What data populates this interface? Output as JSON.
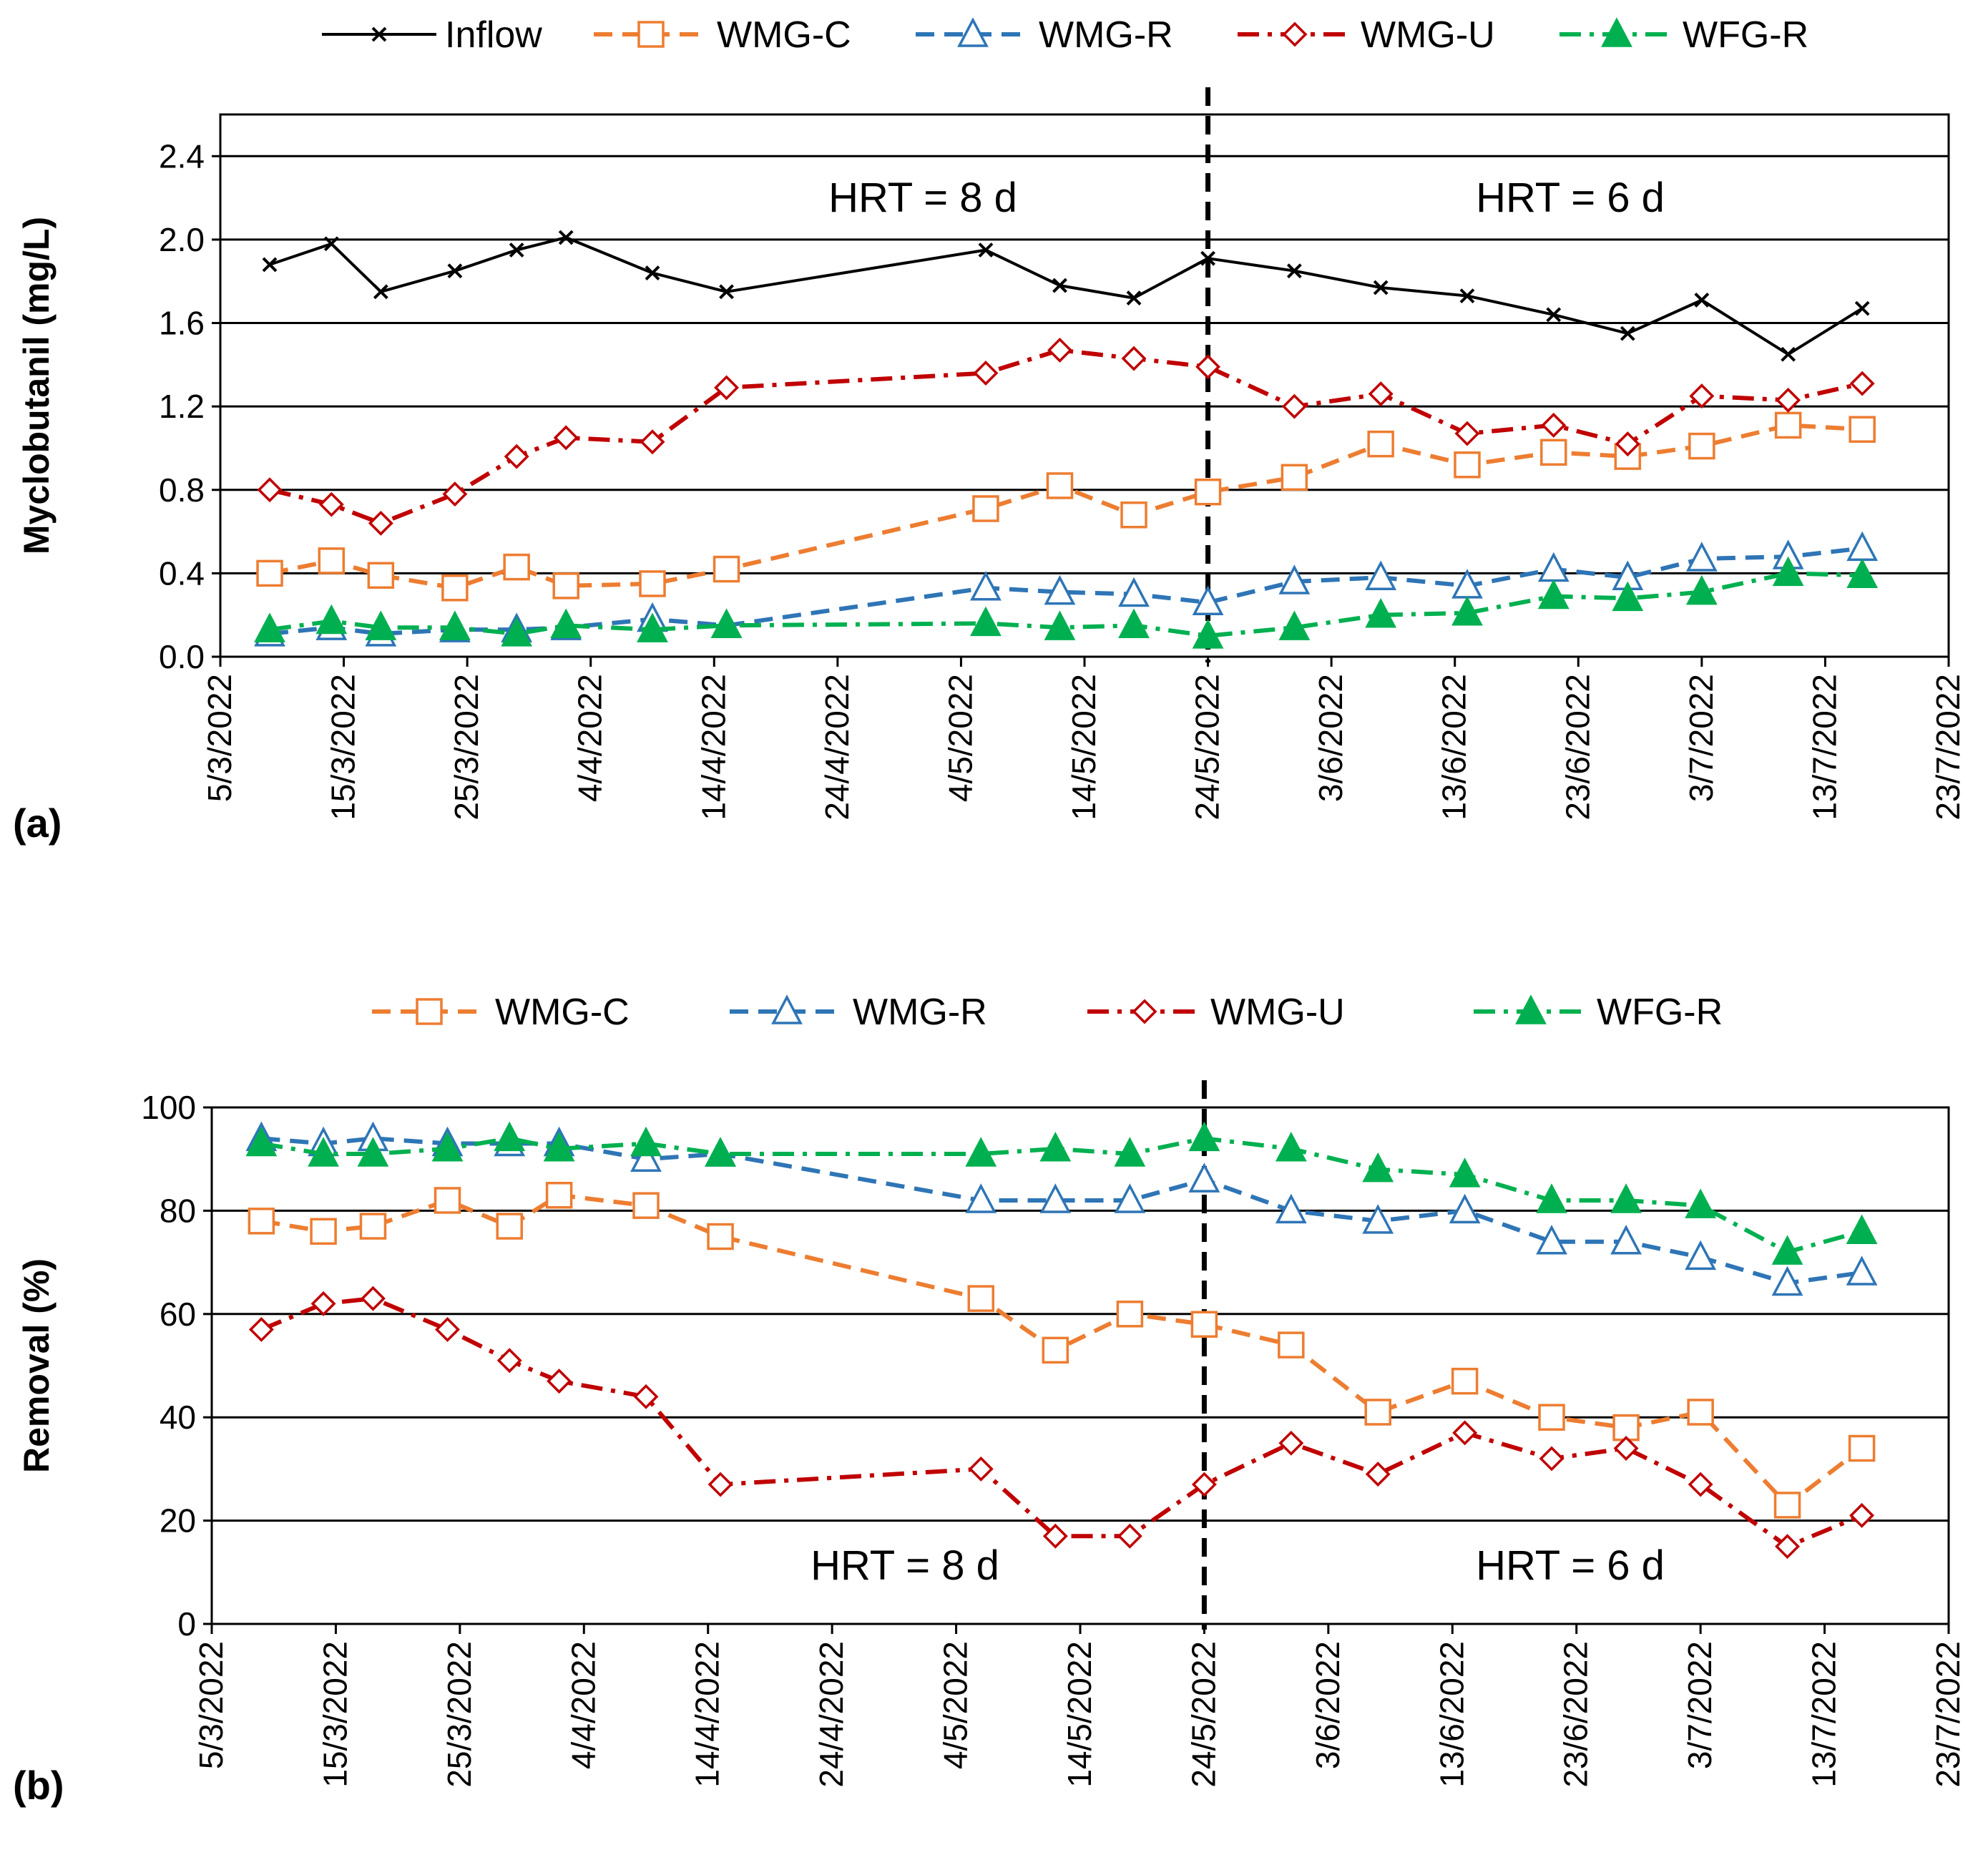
{
  "chart_data": [
    {
      "type": "line",
      "panel_label": "(a)",
      "ylabel": "Myclobutanil (mg/L)",
      "ylim": [
        0,
        2.6
      ],
      "yticks": [
        "0.0",
        "0.4",
        "0.8",
        "1.2",
        "1.6",
        "2.0",
        "2.4"
      ],
      "xlim": [
        "2022-03-05",
        "2022-07-23"
      ],
      "xticks": [
        "5/3/2022",
        "15/3/2022",
        "25/3/2022",
        "4/4/2022",
        "14/4/2022",
        "24/4/2022",
        "4/5/2022",
        "14/5/2022",
        "24/5/2022",
        "3/6/2022",
        "13/6/2022",
        "23/6/2022",
        "3/7/2022",
        "13/7/2022",
        "23/7/2022"
      ],
      "grid": "horizontal",
      "legend_position": "top",
      "divider_date": "2022-05-24",
      "annotations": [
        "HRT = 8 d",
        "HRT = 6 d"
      ],
      "series": [
        {
          "name": "Inflow",
          "color": "#000000",
          "marker": "x",
          "dash": "solid",
          "x": [
            "2022-03-09",
            "2022-03-14",
            "2022-03-18",
            "2022-03-24",
            "2022-03-29",
            "2022-04-02",
            "2022-04-09",
            "2022-04-15",
            "2022-05-06",
            "2022-05-12",
            "2022-05-18",
            "2022-05-24",
            "2022-05-31",
            "2022-06-07",
            "2022-06-14",
            "2022-06-21",
            "2022-06-27",
            "2022-07-03",
            "2022-07-10",
            "2022-07-16"
          ],
          "y": [
            1.88,
            1.98,
            1.75,
            1.85,
            1.95,
            2.01,
            1.84,
            1.75,
            1.95,
            1.78,
            1.72,
            1.91,
            1.85,
            1.77,
            1.73,
            1.64,
            1.55,
            1.71,
            1.45,
            1.67
          ]
        },
        {
          "name": "WMG-C",
          "color": "#ED7D31",
          "marker": "square-open",
          "dash": "dashed",
          "x": [
            "2022-03-09",
            "2022-03-14",
            "2022-03-18",
            "2022-03-24",
            "2022-03-29",
            "2022-04-02",
            "2022-04-09",
            "2022-04-15",
            "2022-05-06",
            "2022-05-12",
            "2022-05-18",
            "2022-05-24",
            "2022-05-31",
            "2022-06-07",
            "2022-06-14",
            "2022-06-21",
            "2022-06-27",
            "2022-07-03",
            "2022-07-10",
            "2022-07-16"
          ],
          "y": [
            0.4,
            0.46,
            0.39,
            0.33,
            0.43,
            0.34,
            0.35,
            0.42,
            0.71,
            0.82,
            0.68,
            0.79,
            0.86,
            1.02,
            0.92,
            0.98,
            0.96,
            1.01,
            1.11,
            1.09
          ]
        },
        {
          "name": "WMG-R",
          "color": "#2E75B6",
          "marker": "triangle-open",
          "dash": "dashed",
          "x": [
            "2022-03-09",
            "2022-03-14",
            "2022-03-18",
            "2022-03-24",
            "2022-03-29",
            "2022-04-02",
            "2022-04-09",
            "2022-04-15",
            "2022-05-06",
            "2022-05-12",
            "2022-05-18",
            "2022-05-24",
            "2022-05-31",
            "2022-06-07",
            "2022-06-14",
            "2022-06-21",
            "2022-06-27",
            "2022-07-03",
            "2022-07-10",
            "2022-07-16"
          ],
          "y": [
            0.11,
            0.14,
            0.11,
            0.13,
            0.13,
            0.14,
            0.18,
            0.15,
            0.33,
            0.31,
            0.3,
            0.26,
            0.36,
            0.38,
            0.34,
            0.42,
            0.38,
            0.47,
            0.48,
            0.52
          ]
        },
        {
          "name": "WMG-U",
          "color": "#C00000",
          "marker": "diamond-open",
          "dash": "dashdot",
          "x": [
            "2022-03-09",
            "2022-03-14",
            "2022-03-18",
            "2022-03-24",
            "2022-03-29",
            "2022-04-02",
            "2022-04-09",
            "2022-04-15",
            "2022-05-06",
            "2022-05-12",
            "2022-05-18",
            "2022-05-24",
            "2022-05-31",
            "2022-06-07",
            "2022-06-14",
            "2022-06-21",
            "2022-06-27",
            "2022-07-03",
            "2022-07-10",
            "2022-07-16"
          ],
          "y": [
            0.8,
            0.73,
            0.64,
            0.78,
            0.96,
            1.05,
            1.03,
            1.29,
            1.36,
            1.47,
            1.43,
            1.39,
            1.2,
            1.26,
            1.07,
            1.11,
            1.02,
            1.25,
            1.23,
            1.31
          ]
        },
        {
          "name": "WFG-R",
          "color": "#00B050",
          "marker": "triangle-filled",
          "dash": "dashdot",
          "x": [
            "2022-03-09",
            "2022-03-14",
            "2022-03-18",
            "2022-03-24",
            "2022-03-29",
            "2022-04-02",
            "2022-04-09",
            "2022-04-15",
            "2022-05-06",
            "2022-05-12",
            "2022-05-18",
            "2022-05-24",
            "2022-05-31",
            "2022-06-07",
            "2022-06-14",
            "2022-06-21",
            "2022-06-27",
            "2022-07-03",
            "2022-07-10",
            "2022-07-16"
          ],
          "y": [
            0.13,
            0.17,
            0.14,
            0.14,
            0.11,
            0.15,
            0.13,
            0.15,
            0.16,
            0.14,
            0.15,
            0.1,
            0.14,
            0.2,
            0.21,
            0.29,
            0.28,
            0.31,
            0.4,
            0.39
          ]
        }
      ]
    },
    {
      "type": "line",
      "panel_label": "(b)",
      "ylabel": "Removal (%)",
      "ylim": [
        0,
        100
      ],
      "yticks": [
        "0",
        "20",
        "40",
        "60",
        "80",
        "100"
      ],
      "xlim": [
        "2022-03-05",
        "2022-07-23"
      ],
      "xticks": [
        "5/3/2022",
        "15/3/2022",
        "25/3/2022",
        "4/4/2022",
        "14/4/2022",
        "24/4/2022",
        "4/5/2022",
        "14/5/2022",
        "24/5/2022",
        "3/6/2022",
        "13/6/2022",
        "23/6/2022",
        "3/7/2022",
        "13/7/2022",
        "23/7/2022"
      ],
      "grid": "horizontal",
      "legend_position": "top",
      "divider_date": "2022-05-24",
      "annotations": [
        "HRT = 8 d",
        "HRT = 6 d"
      ],
      "series": [
        {
          "name": "WMG-C",
          "color": "#ED7D31",
          "marker": "square-open",
          "dash": "dashed",
          "x": [
            "2022-03-09",
            "2022-03-14",
            "2022-03-18",
            "2022-03-24",
            "2022-03-29",
            "2022-04-02",
            "2022-04-09",
            "2022-04-15",
            "2022-05-06",
            "2022-05-12",
            "2022-05-18",
            "2022-05-24",
            "2022-05-31",
            "2022-06-07",
            "2022-06-14",
            "2022-06-21",
            "2022-06-27",
            "2022-07-03",
            "2022-07-10",
            "2022-07-16"
          ],
          "y": [
            78,
            76,
            77,
            82,
            77,
            83,
            81,
            75,
            63,
            53,
            60,
            58,
            54,
            41,
            47,
            40,
            38,
            41,
            23,
            34
          ]
        },
        {
          "name": "WMG-R",
          "color": "#2E75B6",
          "marker": "triangle-open",
          "dash": "dashed",
          "x": [
            "2022-03-09",
            "2022-03-14",
            "2022-03-18",
            "2022-03-24",
            "2022-03-29",
            "2022-04-02",
            "2022-04-09",
            "2022-04-15",
            "2022-05-06",
            "2022-05-12",
            "2022-05-18",
            "2022-05-24",
            "2022-05-31",
            "2022-06-07",
            "2022-06-14",
            "2022-06-21",
            "2022-06-27",
            "2022-07-03",
            "2022-07-10",
            "2022-07-16"
          ],
          "y": [
            94,
            93,
            94,
            93,
            93,
            93,
            90,
            91,
            82,
            82,
            82,
            86,
            80,
            78,
            80,
            74,
            74,
            71,
            66,
            68
          ]
        },
        {
          "name": "WMG-U",
          "color": "#C00000",
          "marker": "diamond-open",
          "dash": "dashdot",
          "x": [
            "2022-03-09",
            "2022-03-14",
            "2022-03-18",
            "2022-03-24",
            "2022-03-29",
            "2022-04-02",
            "2022-04-09",
            "2022-04-15",
            "2022-05-06",
            "2022-05-12",
            "2022-05-18",
            "2022-05-24",
            "2022-05-31",
            "2022-06-07",
            "2022-06-14",
            "2022-06-21",
            "2022-06-27",
            "2022-07-03",
            "2022-07-10",
            "2022-07-16"
          ],
          "y": [
            57,
            62,
            63,
            57,
            51,
            47,
            44,
            27,
            30,
            17,
            17,
            27,
            35,
            29,
            37,
            32,
            34,
            27,
            15,
            21
          ]
        },
        {
          "name": "WFG-R",
          "color": "#00B050",
          "marker": "triangle-filled",
          "dash": "dashdot",
          "x": [
            "2022-03-09",
            "2022-03-14",
            "2022-03-18",
            "2022-03-24",
            "2022-03-29",
            "2022-04-02",
            "2022-04-09",
            "2022-04-15",
            "2022-05-06",
            "2022-05-12",
            "2022-05-18",
            "2022-05-24",
            "2022-05-31",
            "2022-06-07",
            "2022-06-14",
            "2022-06-21",
            "2022-06-27",
            "2022-07-03",
            "2022-07-10",
            "2022-07-16"
          ],
          "y": [
            93,
            91,
            91,
            92,
            94,
            92,
            93,
            91,
            91,
            92,
            91,
            94,
            92,
            88,
            87,
            82,
            82,
            81,
            72,
            76
          ]
        }
      ]
    }
  ]
}
